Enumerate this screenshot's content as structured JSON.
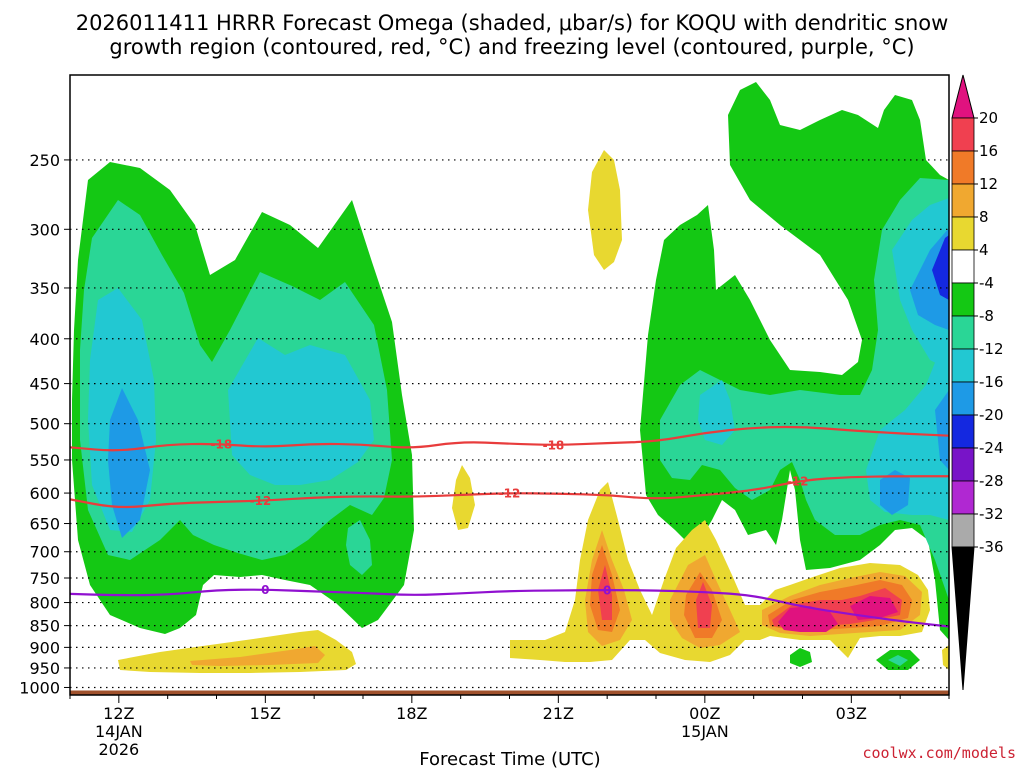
{
  "chart_data": {
    "type": "heatmap",
    "title_line1": "2026011411 HRRR Forecast Omega (shaded, μbar/s) for KOQU with dendritic snow",
    "title_line2": "growth region (contoured, red, °C) and freezing level (contoured, purple, °C)",
    "xlabel": "Forecast Time (UTC)",
    "credit": "coolwx.com/models",
    "x_hours": [
      0,
      3,
      6,
      9,
      12,
      15,
      18
    ],
    "xlim": [
      -1,
      17
    ],
    "x_ticks": [
      {
        "hour": 0,
        "label": "12Z",
        "sub1": "14JAN",
        "sub2": "2026"
      },
      {
        "hour": 3,
        "label": "15Z",
        "sub1": "",
        "sub2": ""
      },
      {
        "hour": 6,
        "label": "18Z",
        "sub1": "",
        "sub2": ""
      },
      {
        "hour": 9,
        "label": "21Z",
        "sub1": "",
        "sub2": ""
      },
      {
        "hour": 12,
        "label": "00Z",
        "sub1": "15JAN",
        "sub2": ""
      },
      {
        "hour": 15,
        "label": "03Z",
        "sub1": "",
        "sub2": ""
      }
    ],
    "y_ticks": [
      "250",
      "300",
      "350",
      "400",
      "450",
      "500",
      "550",
      "600",
      "650",
      "700",
      "750",
      "800",
      "850",
      "900",
      "950",
      "1000"
    ],
    "colorbar": {
      "labels": [
        "20",
        "16",
        "12",
        "8",
        "4",
        "-4",
        "-8",
        "-12",
        "-16",
        "-20",
        "-24",
        "-28",
        "-32",
        "-36"
      ],
      "colors": {
        "above20": "#e0127f",
        "c16_20": "#f04050",
        "c12_16": "#f07a28",
        "c8_12": "#f0a830",
        "c4_8": "#e8d830",
        "c_neg4_4": "#ffffff",
        "c_neg8_neg4": "#14c814",
        "c_neg12_neg8": "#2ad696",
        "c_neg16_neg12": "#22c8d2",
        "c_neg20_neg16": "#1e9ae6",
        "c_neg24_neg20": "#1428e0",
        "c_neg28_neg24": "#7814c8",
        "c_neg32_neg28": "#b028d2",
        "c_neg36_neg32": "#aaaaaa",
        "below_neg36": "#000000"
      }
    },
    "contours": [
      {
        "name": "dgz-minus18",
        "label": "-18",
        "color": "#e83c3c",
        "points": [
          [
            -1,
            532
          ],
          [
            0,
            538
          ],
          [
            1,
            528
          ],
          [
            2,
            527
          ],
          [
            3,
            532
          ],
          [
            4,
            527
          ],
          [
            5,
            528
          ],
          [
            6,
            534
          ],
          [
            7,
            524
          ],
          [
            8,
            527
          ],
          [
            9,
            529
          ],
          [
            10,
            526
          ],
          [
            11,
            524
          ],
          [
            12,
            512
          ],
          [
            13,
            505
          ],
          [
            14,
            504
          ],
          [
            15,
            509
          ],
          [
            16,
            513
          ],
          [
            17,
            516
          ]
        ]
      },
      {
        "name": "dgz-minus12",
        "label": "-12",
        "color": "#e83c3c",
        "points": [
          [
            -1,
            610
          ],
          [
            0,
            625
          ],
          [
            1,
            617
          ],
          [
            2,
            614
          ],
          [
            3,
            612
          ],
          [
            4,
            607
          ],
          [
            5,
            605
          ],
          [
            6,
            606
          ],
          [
            7,
            603
          ],
          [
            8,
            600
          ],
          [
            9,
            601
          ],
          [
            10,
            603
          ],
          [
            11,
            610
          ],
          [
            12,
            603
          ],
          [
            13,
            596
          ],
          [
            14,
            580
          ],
          [
            15,
            575
          ],
          [
            16,
            574
          ],
          [
            17,
            574
          ]
        ]
      },
      {
        "name": "freezing-level",
        "label": "0",
        "color": "#9010d0",
        "points": [
          [
            -1,
            782
          ],
          [
            0,
            785
          ],
          [
            1,
            784
          ],
          [
            2,
            774
          ],
          [
            3,
            773
          ],
          [
            4,
            777
          ],
          [
            5,
            780
          ],
          [
            6,
            785
          ],
          [
            7,
            781
          ],
          [
            8,
            776
          ],
          [
            9,
            775
          ],
          [
            10,
            774
          ],
          [
            11,
            775
          ],
          [
            12,
            778
          ],
          [
            13,
            785
          ],
          [
            14,
            809
          ],
          [
            15,
            825
          ],
          [
            16,
            840
          ],
          [
            17,
            852
          ]
        ]
      }
    ],
    "contour_label_hours": [
      {
        "name": "dgz-minus18",
        "hour": 2.1
      },
      {
        "name": "dgz-minus18",
        "hour": 8.9
      },
      {
        "name": "dgz-minus12",
        "hour": 2.9
      },
      {
        "name": "dgz-minus12",
        "hour": 8.0
      },
      {
        "name": "dgz-minus12",
        "hour": 13.9
      },
      {
        "name": "freezing-level",
        "hour": 3.0
      },
      {
        "name": "freezing-level",
        "hour": 10.0
      }
    ],
    "surface_pressure": 1008,
    "surface_color": "#a0522d",
    "ylim": [
      200,
      1020
    ]
  }
}
